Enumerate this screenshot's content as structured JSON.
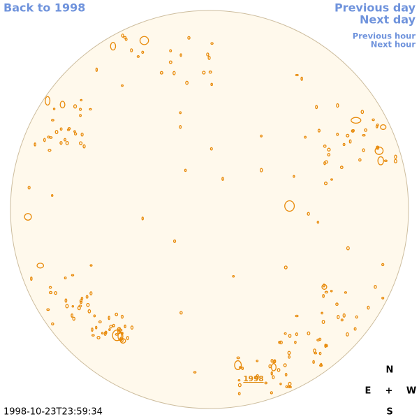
{
  "navigation": {
    "back": "Back to 1998",
    "previous_day": "Previous day",
    "next_day": "Next day",
    "previous_hour": "Previous hour",
    "next_hour": "Next hour"
  },
  "timestamp": "1998-10-23T23:59:34",
  "compass": {
    "north": "N",
    "east": "E",
    "center": "+",
    "west": "W",
    "south": "S"
  },
  "disk_label": "1998"
}
